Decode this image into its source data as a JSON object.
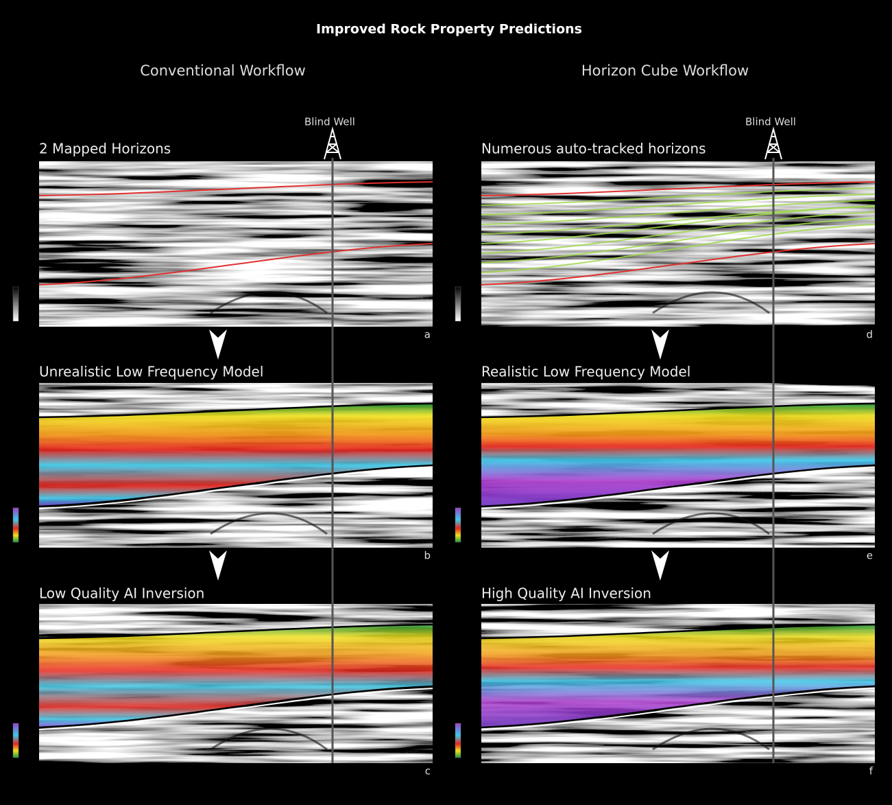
{
  "title": "Improved Rock Property Predictions",
  "columns": [
    {
      "heading": "Conventional Workflow",
      "well": "Blind Well",
      "panels": [
        {
          "title": "2 Mapped Horizons",
          "letter": "a"
        },
        {
          "title": "Unrealistic Low Frequency Model",
          "letter": "b"
        },
        {
          "title": "Low Quality AI Inversion",
          "letter": "c"
        }
      ]
    },
    {
      "heading": "Horizon Cube Workflow",
      "well": "Blind Well",
      "panels": [
        {
          "title": "Numerous auto-tracked horizons",
          "letter": "d"
        },
        {
          "title": "Realistic Low Frequency Model",
          "letter": "e"
        },
        {
          "title": "High Quality AI Inversion",
          "letter": "f"
        }
      ]
    }
  ]
}
